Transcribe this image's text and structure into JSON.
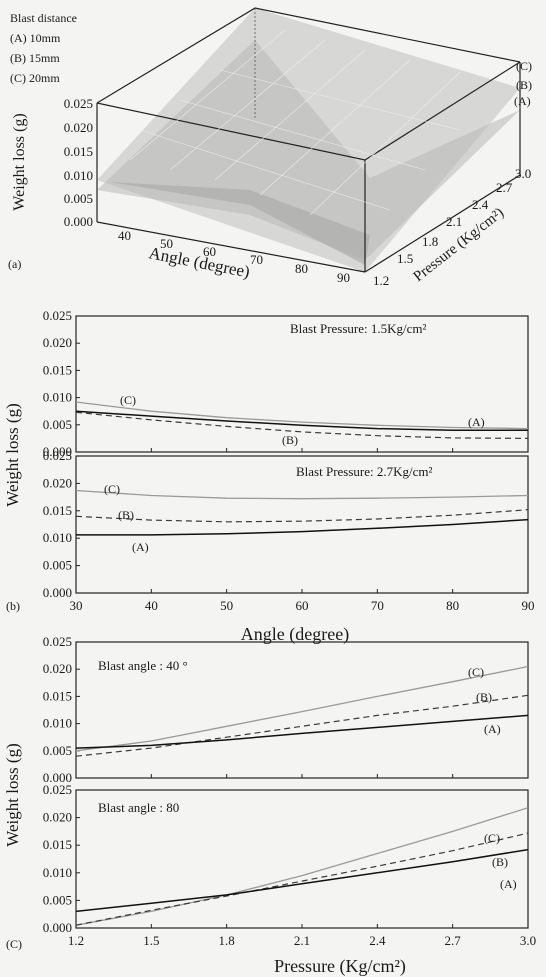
{
  "panel_a": {
    "panel_label": "(a)",
    "legend_title": "Blast distance",
    "legend_items": [
      "(A) 10mm",
      "(B) 15mm",
      "(C) 20mm"
    ],
    "z_label": "Weight loss (g)",
    "x_label": "Angle (degree)",
    "y_label": "Pressure (Kg/cm²)",
    "z_ticks": [
      "0.000",
      "0.005",
      "0.010",
      "0.015",
      "0.020",
      "0.025"
    ],
    "x_ticks": [
      "40",
      "50",
      "60",
      "70",
      "80",
      "90"
    ],
    "y_ticks": [
      "1.2",
      "1.5",
      "1.8",
      "2.1",
      "2.4",
      "2.7",
      "3.0"
    ],
    "surface_labels": [
      "(C)",
      "(B)",
      "(A)"
    ]
  },
  "panel_b_label": "(b)",
  "panel_c_label": "(C)",
  "ylabel": "Weight loss (g)",
  "xlabel_b": "Angle (degree)",
  "xlabel_c": "Pressure (Kg/cm²)",
  "chart_data": [
    {
      "type": "line",
      "annotation": "Blast Pressure: 1.5Kg/cm²",
      "ylim": [
        0,
        0.025
      ],
      "xlim": [
        30,
        90
      ],
      "yticks": [
        "0.025",
        "0.020",
        "0.015",
        "0.010",
        "0.005",
        "0.000"
      ],
      "x": [
        30,
        40,
        50,
        60,
        70,
        80,
        90
      ],
      "series": [
        {
          "name": "(C)",
          "style": "solid-gray",
          "values": [
            0.0092,
            0.0075,
            0.0063,
            0.0055,
            0.0049,
            0.0045,
            0.0043
          ]
        },
        {
          "name": "(B)",
          "style": "dashed",
          "values": [
            0.0073,
            0.0059,
            0.0047,
            0.0037,
            0.003,
            0.0026,
            0.0025
          ]
        },
        {
          "name": "(A)",
          "style": "solid-black",
          "values": [
            0.0075,
            0.0066,
            0.0057,
            0.0049,
            0.0043,
            0.004,
            0.004
          ]
        }
      ],
      "series_labels": [
        "(C)",
        "(B)",
        "(A)"
      ]
    },
    {
      "type": "line",
      "annotation": "Blast Pressure: 2.7Kg/cm²",
      "ylim": [
        0,
        0.025
      ],
      "xlim": [
        30,
        90
      ],
      "yticks": [
        "0.025",
        "0.020",
        "0.015",
        "0.010",
        "0.005",
        "0.000"
      ],
      "xticks": [
        "30",
        "40",
        "50",
        "60",
        "70",
        "80",
        "90"
      ],
      "x": [
        30,
        40,
        50,
        60,
        70,
        80,
        90
      ],
      "series": [
        {
          "name": "(C)",
          "style": "solid-gray",
          "values": [
            0.0187,
            0.0178,
            0.0173,
            0.0172,
            0.0173,
            0.0175,
            0.0178
          ]
        },
        {
          "name": "(B)",
          "style": "dashed",
          "values": [
            0.014,
            0.0133,
            0.013,
            0.0131,
            0.0135,
            0.0142,
            0.0152
          ]
        },
        {
          "name": "(A)",
          "style": "solid-black",
          "values": [
            0.0106,
            0.0106,
            0.0108,
            0.0112,
            0.0118,
            0.0125,
            0.0134
          ]
        }
      ],
      "series_labels": [
        "(C)",
        "(B)",
        "(A)"
      ]
    },
    {
      "type": "line",
      "annotation": "Blast angle : 40 °",
      "ylim": [
        0,
        0.025
      ],
      "xlim": [
        1.2,
        3.0
      ],
      "yticks": [
        "0.025",
        "0.020",
        "0.015",
        "0.010",
        "0.005",
        "0.000"
      ],
      "x": [
        1.2,
        1.5,
        1.8,
        2.1,
        2.4,
        2.7,
        3.0
      ],
      "series": [
        {
          "name": "(C)",
          "style": "solid-gray",
          "values": [
            0.005,
            0.0068,
            0.0095,
            0.0122,
            0.015,
            0.0177,
            0.0205
          ]
        },
        {
          "name": "(B)",
          "style": "dashed",
          "values": [
            0.004,
            0.0055,
            0.0075,
            0.0095,
            0.0115,
            0.0132,
            0.0152
          ]
        },
        {
          "name": "(A)",
          "style": "solid-black",
          "values": [
            0.0055,
            0.006,
            0.007,
            0.0082,
            0.0093,
            0.0104,
            0.0115
          ]
        }
      ],
      "series_labels": [
        "(C)",
        "(B)",
        "(A)"
      ]
    },
    {
      "type": "line",
      "annotation": "Blast angle : 80",
      "ylim": [
        0,
        0.025
      ],
      "xlim": [
        1.2,
        3.0
      ],
      "yticks": [
        "0.025",
        "0.020",
        "0.015",
        "0.010",
        "0.005",
        "0.000"
      ],
      "xticks": [
        "1.2",
        "1.5",
        "1.8",
        "2.1",
        "2.4",
        "2.7",
        "3.0"
      ],
      "x": [
        1.2,
        1.5,
        1.8,
        2.1,
        2.4,
        2.7,
        3.0
      ],
      "series": [
        {
          "name": "(C)",
          "style": "solid-gray",
          "values": [
            0.0005,
            0.003,
            0.006,
            0.0095,
            0.0135,
            0.0175,
            0.0218
          ]
        },
        {
          "name": "(B)",
          "style": "dashed",
          "values": [
            0.0005,
            0.0032,
            0.0058,
            0.0085,
            0.0112,
            0.014,
            0.0172
          ]
        },
        {
          "name": "(A)",
          "style": "solid-black",
          "values": [
            0.003,
            0.0045,
            0.006,
            0.008,
            0.01,
            0.012,
            0.0142
          ]
        }
      ],
      "series_labels": [
        "(C)",
        "(B)",
        "(A)"
      ]
    }
  ]
}
